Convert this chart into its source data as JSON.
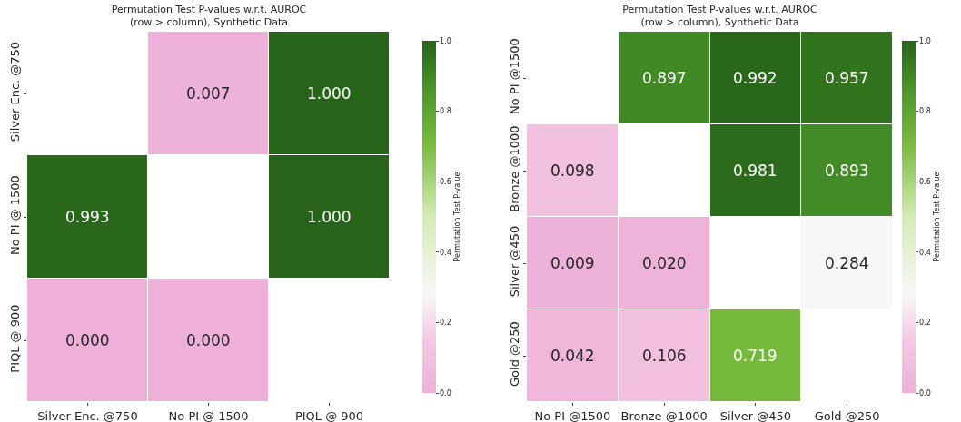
{
  "chart_data": [
    {
      "type": "heatmap",
      "title": "Permutation Test P-values w.r.t. AUROC\n(row > column), Synthetic Data",
      "clabel": "Permutation Test P-value",
      "categories": [
        "Silver Enc. @750",
        "No PI @ 1500",
        "PIQL @ 900"
      ],
      "y_categories": [
        "Silver Enc. @750",
        "No PI @ 1500",
        "PIQL @ 900"
      ],
      "cells": [
        [
          null,
          0.007,
          1.0
        ],
        [
          0.993,
          null,
          1.0
        ],
        [
          0.0,
          0.0,
          null
        ]
      ],
      "cell_labels": [
        [
          null,
          "0.007",
          "1.000"
        ],
        [
          "0.993",
          null,
          "1.000"
        ],
        [
          "0.000",
          "0.000",
          null
        ]
      ],
      "clim": [
        0,
        1
      ],
      "cticks": [
        {
          "value": 0,
          "label": "0.0"
        },
        {
          "value": 0.2,
          "label": "0.2"
        },
        {
          "value": 0.4,
          "label": "0.4"
        },
        {
          "value": 0.6,
          "label": "0.6"
        },
        {
          "value": 0.8,
          "label": "0.8"
        },
        {
          "value": 1,
          "label": "1.0"
        }
      ]
    },
    {
      "type": "heatmap",
      "title": "Permutation Test P-values w.r.t. AUROC\n(row > column), Synthetic Data",
      "clabel": "Permutation Test P-value",
      "categories": [
        "No PI @1500",
        "Bronze @1000",
        "Silver @450",
        "Gold @250"
      ],
      "y_categories": [
        "No PI @1500",
        "Bronze @1000",
        "Silver @450",
        "Gold @250"
      ],
      "cells": [
        [
          null,
          0.897,
          0.992,
          0.957
        ],
        [
          0.098,
          null,
          0.981,
          0.893
        ],
        [
          0.009,
          0.02,
          null,
          0.284
        ],
        [
          0.042,
          0.106,
          0.719,
          null
        ]
      ],
      "cell_labels": [
        [
          null,
          "0.897",
          "0.992",
          "0.957"
        ],
        [
          "0.098",
          null,
          "0.981",
          "0.893"
        ],
        [
          "0.009",
          "0.020",
          null,
          "0.284"
        ],
        [
          "0.042",
          "0.106",
          "0.719",
          null
        ]
      ],
      "clim": [
        0,
        1
      ],
      "cticks": [
        {
          "value": 0,
          "label": "0.0"
        },
        {
          "value": 0.2,
          "label": "0.2"
        },
        {
          "value": 0.4,
          "label": "0.4"
        },
        {
          "value": 0.6,
          "label": "0.6"
        },
        {
          "value": 0.8,
          "label": "0.8"
        },
        {
          "value": 1,
          "label": "1.0"
        }
      ]
    }
  ]
}
